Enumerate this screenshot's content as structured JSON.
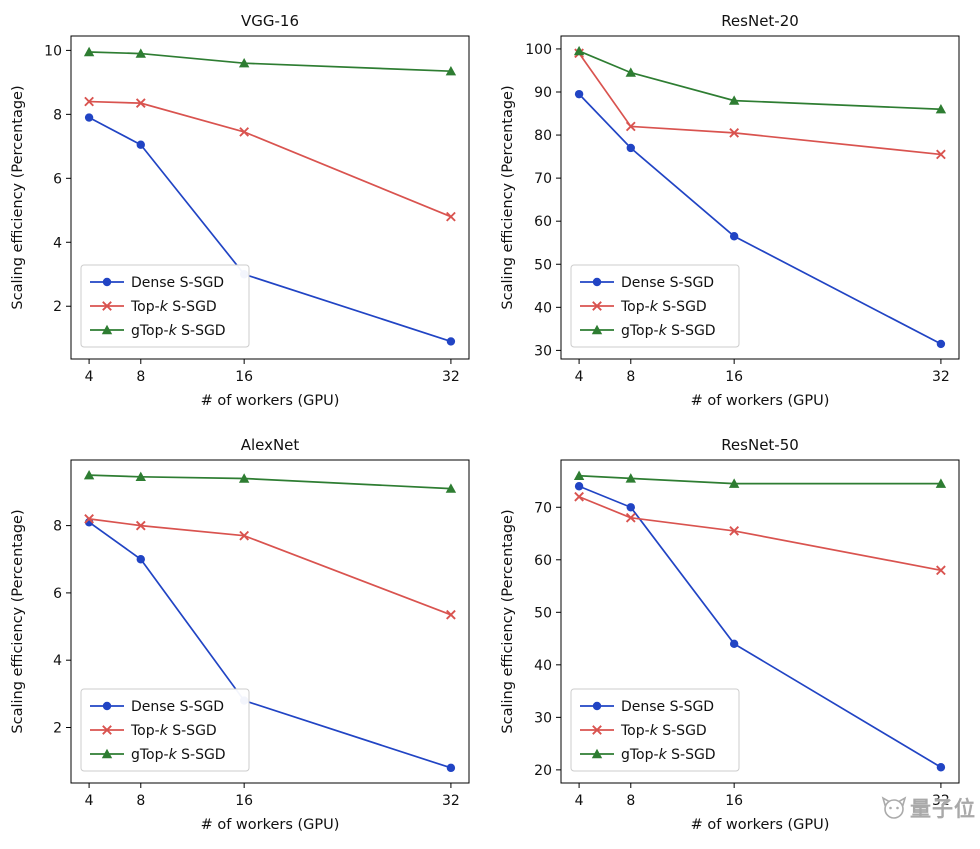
{
  "watermark": {
    "text": "量子位"
  },
  "chart_data": [
    {
      "type": "line",
      "title": "VGG-16",
      "xlabel": "# of workers (GPU)",
      "ylabel": "Scaling efficiency (Percentage)",
      "x": [
        4,
        8,
        16,
        32
      ],
      "xticks": [
        4,
        8,
        16,
        32
      ],
      "xlim": [
        2.6,
        33.4
      ],
      "yticks": [
        2,
        4,
        6,
        8,
        10
      ],
      "ylim": [
        0.35,
        10.45
      ],
      "grid": false,
      "legend_position": "lower left",
      "series": [
        {
          "name": "Dense S-SGD",
          "marker": "circle",
          "color": "#2144c4",
          "values": [
            7.9,
            7.05,
            3.0,
            0.9
          ]
        },
        {
          "name": "Top-k S-SGD",
          "marker": "x",
          "color": "#d9534f",
          "values": [
            8.4,
            8.35,
            7.45,
            4.8
          ]
        },
        {
          "name": "gTop-k S-SGD",
          "marker": "triangle",
          "color": "#2e7d32",
          "values": [
            9.95,
            9.9,
            9.6,
            9.35
          ]
        }
      ]
    },
    {
      "type": "line",
      "title": "ResNet-20",
      "xlabel": "# of workers (GPU)",
      "ylabel": "Scaling efficiency (Percentage)",
      "x": [
        4,
        8,
        16,
        32
      ],
      "xticks": [
        4,
        8,
        16,
        32
      ],
      "xlim": [
        2.6,
        33.4
      ],
      "yticks": [
        30,
        40,
        50,
        60,
        70,
        80,
        90,
        100
      ],
      "ylim": [
        28,
        103
      ],
      "grid": false,
      "legend_position": "lower left",
      "series": [
        {
          "name": "Dense S-SGD",
          "marker": "circle",
          "color": "#2144c4",
          "values": [
            89.5,
            77,
            56.5,
            31.5
          ]
        },
        {
          "name": "Top-k S-SGD",
          "marker": "x",
          "color": "#d9534f",
          "values": [
            99,
            82,
            80.5,
            75.5
          ]
        },
        {
          "name": "gTop-k S-SGD",
          "marker": "triangle",
          "color": "#2e7d32",
          "values": [
            99.5,
            94.5,
            88,
            86
          ]
        }
      ]
    },
    {
      "type": "line",
      "title": "AlexNet",
      "xlabel": "# of workers (GPU)",
      "ylabel": "Scaling efficiency (Percentage)",
      "x": [
        4,
        8,
        16,
        32
      ],
      "xticks": [
        4,
        8,
        16,
        32
      ],
      "xlim": [
        2.6,
        33.4
      ],
      "yticks": [
        2,
        4,
        6,
        8
      ],
      "ylim": [
        0.35,
        9.95
      ],
      "grid": false,
      "legend_position": "lower left",
      "series": [
        {
          "name": "Dense S-SGD",
          "marker": "circle",
          "color": "#2144c4",
          "values": [
            8.1,
            7.0,
            2.8,
            0.8
          ]
        },
        {
          "name": "Top-k S-SGD",
          "marker": "x",
          "color": "#d9534f",
          "values": [
            8.2,
            8.0,
            7.7,
            5.35
          ]
        },
        {
          "name": "gTop-k S-SGD",
          "marker": "triangle",
          "color": "#2e7d32",
          "values": [
            9.5,
            9.45,
            9.4,
            9.1
          ]
        }
      ]
    },
    {
      "type": "line",
      "title": "ResNet-50",
      "xlabel": "# of workers (GPU)",
      "ylabel": "Scaling efficiency (Percentage)",
      "x": [
        4,
        8,
        16,
        32
      ],
      "xticks": [
        4,
        8,
        16,
        32
      ],
      "xlim": [
        2.6,
        33.4
      ],
      "yticks": [
        20,
        30,
        40,
        50,
        60,
        70
      ],
      "ylim": [
        17.5,
        79
      ],
      "grid": false,
      "legend_position": "lower left",
      "series": [
        {
          "name": "Dense S-SGD",
          "marker": "circle",
          "color": "#2144c4",
          "values": [
            74,
            70,
            44,
            20.5
          ]
        },
        {
          "name": "Top-k S-SGD",
          "marker": "x",
          "color": "#d9534f",
          "values": [
            72,
            68,
            65.5,
            58
          ]
        },
        {
          "name": "gTop-k S-SGD",
          "marker": "triangle",
          "color": "#2e7d32",
          "values": [
            76,
            75.5,
            74.5,
            74.5
          ]
        }
      ]
    }
  ]
}
